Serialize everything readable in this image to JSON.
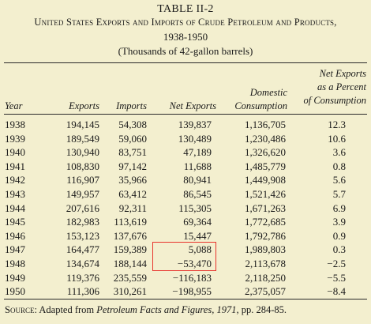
{
  "table": {
    "number": "TABLE II-2",
    "title": "United States Exports and Imports of Crude Petroleum and Products,",
    "years": "1938-1950",
    "units": "(Thousands of 42-gallon barrels)",
    "columns": {
      "year": "Year",
      "exports": "Exports",
      "imports": "Imports",
      "net_exports": "Net Exports",
      "domestic_1": "Domestic",
      "domestic_2": "Consumption",
      "pct_1": "Net Exports",
      "pct_2": "as a Percent",
      "pct_3": "of Consumption"
    },
    "rows": [
      {
        "year": "1938",
        "exports": "194,145",
        "imports": "54,308",
        "net": "139,837",
        "consumption": "1,136,705",
        "pct": "12.3"
      },
      {
        "year": "1939",
        "exports": "189,549",
        "imports": "59,060",
        "net": "130,489",
        "consumption": "1,230,486",
        "pct": "10.6"
      },
      {
        "year": "1940",
        "exports": "130,940",
        "imports": "83,751",
        "net": "47,189",
        "consumption": "1,326,620",
        "pct": "3.6"
      },
      {
        "year": "1941",
        "exports": "108,830",
        "imports": "97,142",
        "net": "11,688",
        "consumption": "1,485,779",
        "pct": "0.8"
      },
      {
        "year": "1942",
        "exports": "116,907",
        "imports": "35,966",
        "net": "80,941",
        "consumption": "1,449,908",
        "pct": "5.6"
      },
      {
        "year": "1943",
        "exports": "149,957",
        "imports": "63,412",
        "net": "86,545",
        "consumption": "1,521,426",
        "pct": "5.7"
      },
      {
        "year": "1944",
        "exports": "207,616",
        "imports": "92,311",
        "net": "115,305",
        "consumption": "1,671,263",
        "pct": "6.9"
      },
      {
        "year": "1945",
        "exports": "182,983",
        "imports": "113,619",
        "net": "69,364",
        "consumption": "1,772,685",
        "pct": "3.9"
      },
      {
        "year": "1946",
        "exports": "153,123",
        "imports": "137,676",
        "net": "15,447",
        "consumption": "1,792,786",
        "pct": "0.9"
      },
      {
        "year": "1947",
        "exports": "164,477",
        "imports": "159,389",
        "net": "5,088",
        "consumption": "1,989,803",
        "pct": "0.3"
      },
      {
        "year": "1948",
        "exports": "134,674",
        "imports": "188,144",
        "net": "−53,470",
        "consumption": "2,113,678",
        "pct": "−2.5"
      },
      {
        "year": "1949",
        "exports": "119,376",
        "imports": "235,559",
        "net": "−116,183",
        "consumption": "2,118,250",
        "pct": "−5.5"
      },
      {
        "year": "1950",
        "exports": "111,306",
        "imports": "310,261",
        "net": "−198,955",
        "consumption": "2,375,057",
        "pct": "−8.4"
      }
    ],
    "source": {
      "label": "Source:",
      "pre": " Adapted from ",
      "publication": "Petroleum Facts and Figures, 1971",
      "post": ", pp. 284-85."
    }
  },
  "colors": {
    "background": "#f3efcf",
    "highlight": "#e8332c"
  }
}
